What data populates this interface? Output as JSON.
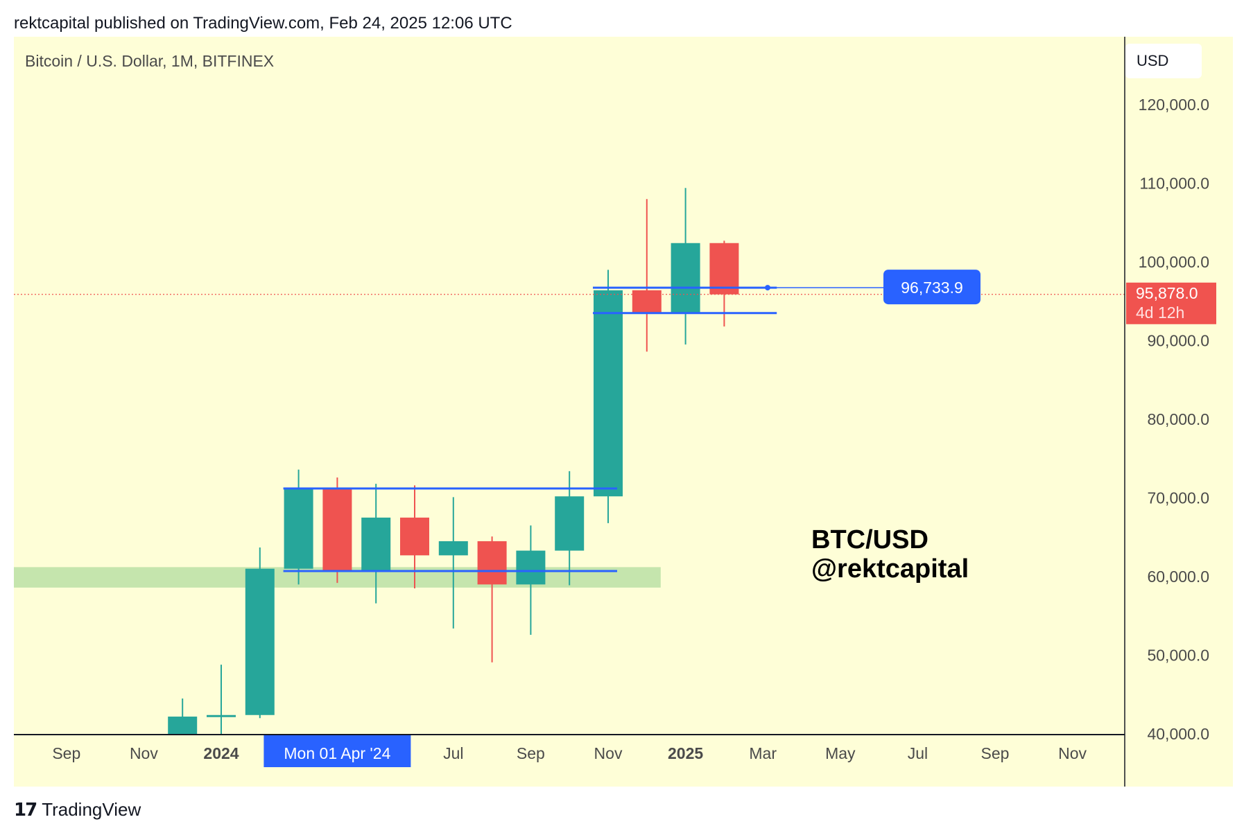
{
  "header": {
    "published": "rektcapital published on TradingView.com, Feb 24, 2025 12:06 UTC"
  },
  "chart_header": {
    "symbol": "Bitcoin / U.S. Dollar, 1M, BITFINEX",
    "currency_button": "USD"
  },
  "watermark": {
    "line1": "BTC/USD",
    "line2": "@rektcapital"
  },
  "footer": {
    "brand": "TradingView",
    "logo_icon": "tradingview-logo-icon"
  },
  "colors": {
    "background": "#fefed7",
    "up": "#26a69a",
    "down": "#ef5350",
    "drawing": "#2962ff",
    "support_zone": "#c5e5ad",
    "price_label": "#f0534f"
  },
  "chart_data": {
    "type": "candlestick",
    "symbol": "Bitcoin / U.S. Dollar",
    "interval": "1M",
    "exchange": "BITFINEX",
    "y_axis": {
      "ticks": [
        40000,
        50000,
        60000,
        70000,
        80000,
        90000,
        100000,
        110000,
        120000
      ],
      "tick_labels": [
        "40,000.0",
        "50,000.0",
        "60,000.0",
        "70,000.0",
        "80,000.0",
        "90,000.0",
        "100,000.0",
        "110,000.0",
        "120,000.0"
      ],
      "ylim": [
        38500,
        127000
      ],
      "position": "right"
    },
    "x_axis": {
      "ticks": [
        {
          "date": "2023-09",
          "label": "Sep",
          "bold": false
        },
        {
          "date": "2023-11",
          "label": "Nov",
          "bold": false
        },
        {
          "date": "2024-01",
          "label": "2024",
          "bold": true
        },
        {
          "date": "2024-04",
          "label": "Mon 01 Apr '24",
          "highlight": true
        },
        {
          "date": "2024-07",
          "label": "Jul",
          "bold": false
        },
        {
          "date": "2024-09",
          "label": "Sep",
          "bold": false
        },
        {
          "date": "2024-11",
          "label": "Nov",
          "bold": false
        },
        {
          "date": "2025-01",
          "label": "2025",
          "bold": true
        },
        {
          "date": "2025-03",
          "label": "Mar",
          "bold": false
        },
        {
          "date": "2025-05",
          "label": "May",
          "bold": false
        },
        {
          "date": "2025-07",
          "label": "Jul",
          "bold": false
        },
        {
          "date": "2025-09",
          "label": "Sep",
          "bold": false
        },
        {
          "date": "2025-11",
          "label": "Nov",
          "bold": false
        }
      ],
      "range": [
        "2023-08",
        "2025-12"
      ]
    },
    "candles": [
      {
        "date": "2023-12",
        "open": 37500,
        "high": 44500,
        "low": 37200,
        "close": 42200
      },
      {
        "date": "2024-01",
        "open": 42200,
        "high": 48800,
        "low": 38600,
        "close": 42400
      },
      {
        "date": "2024-02",
        "open": 42400,
        "high": 63700,
        "low": 42000,
        "close": 61000
      },
      {
        "date": "2024-03",
        "open": 61000,
        "high": 73600,
        "low": 59000,
        "close": 71200
      },
      {
        "date": "2024-04",
        "open": 71200,
        "high": 72600,
        "low": 59200,
        "close": 60700
      },
      {
        "date": "2024-05",
        "open": 60700,
        "high": 71800,
        "low": 56600,
        "close": 67500
      },
      {
        "date": "2024-06",
        "open": 67500,
        "high": 71600,
        "low": 58500,
        "close": 62700
      },
      {
        "date": "2024-07",
        "open": 62700,
        "high": 70100,
        "low": 53400,
        "close": 64500
      },
      {
        "date": "2024-08",
        "open": 64500,
        "high": 65100,
        "low": 49100,
        "close": 59000
      },
      {
        "date": "2024-09",
        "open": 59000,
        "high": 66500,
        "low": 52600,
        "close": 63300
      },
      {
        "date": "2024-10",
        "open": 63300,
        "high": 73400,
        "low": 58900,
        "close": 70200
      },
      {
        "date": "2024-11",
        "open": 70200,
        "high": 99000,
        "low": 66800,
        "close": 96400
      },
      {
        "date": "2024-12",
        "open": 96400,
        "high": 108000,
        "low": 88600,
        "close": 93500
      },
      {
        "date": "2025-01",
        "open": 93500,
        "high": 109400,
        "low": 89500,
        "close": 102400
      },
      {
        "date": "2025-02",
        "open": 102400,
        "high": 102700,
        "low": 91800,
        "close": 95878
      }
    ],
    "current_price": {
      "value": 95878.0,
      "label": "95,878.0",
      "countdown": "4d 12h"
    },
    "annotations": {
      "price_label": {
        "value": 96733.9,
        "label": "96,733.9"
      },
      "ranges": [
        {
          "low": 60700,
          "high": 71200,
          "from": "2024-03",
          "to": "2024-11"
        },
        {
          "low": 93500,
          "high": 96733.9,
          "from": "2024-11",
          "to": "2025-03"
        }
      ],
      "support_zone": {
        "low": 58600,
        "high": 61200,
        "from": "2023-08",
        "to": "2024-12"
      }
    },
    "grid": false,
    "legend": "none"
  }
}
